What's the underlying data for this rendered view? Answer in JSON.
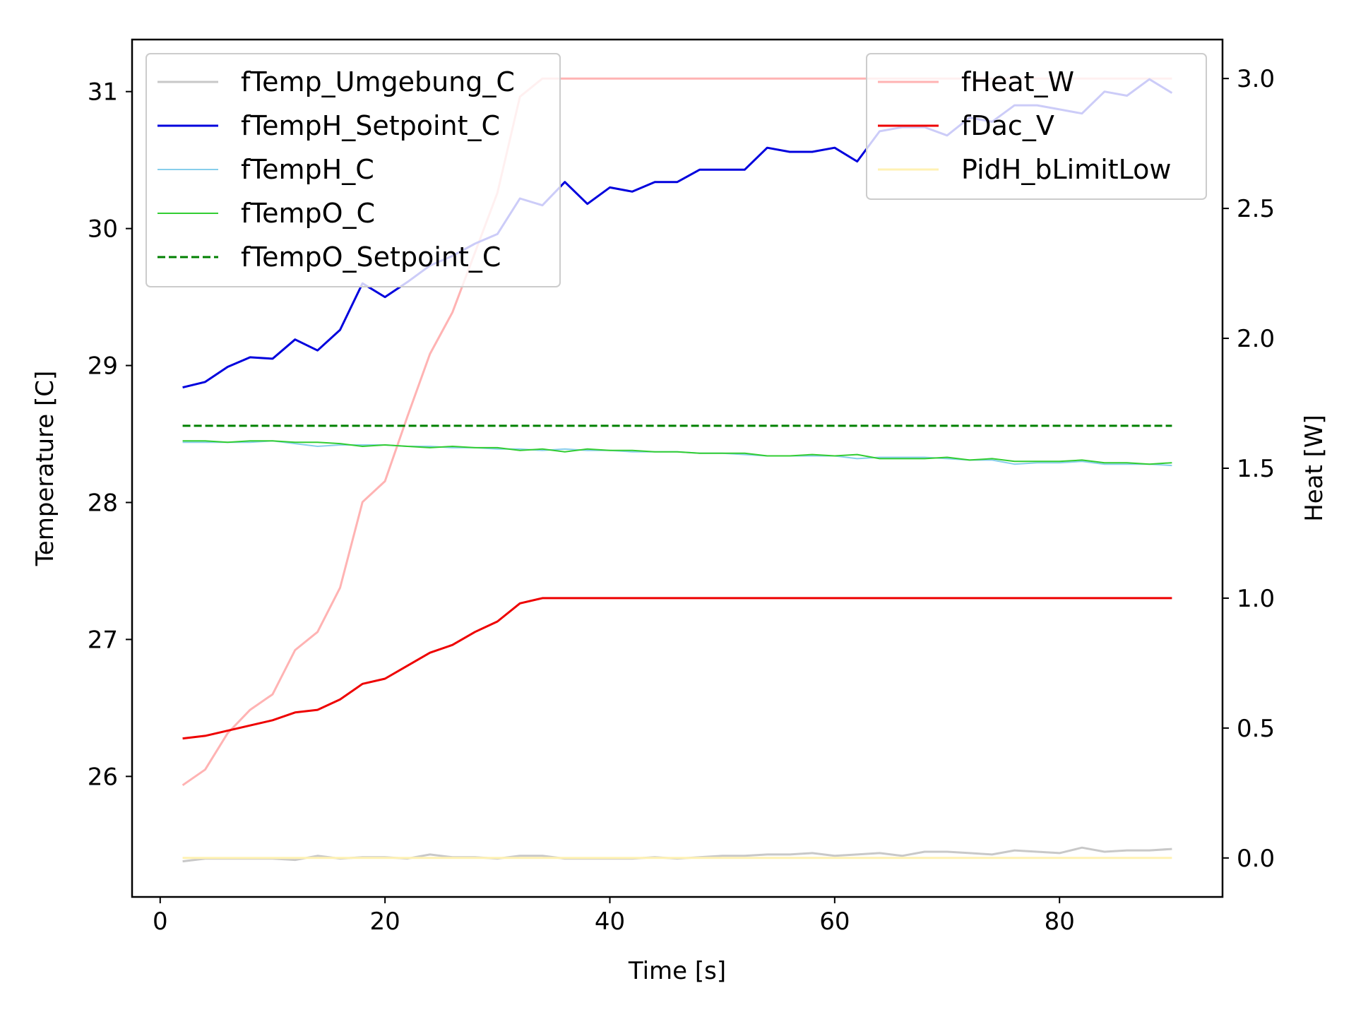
{
  "chart_data": {
    "type": "line",
    "title": "",
    "xlabel": "Time [s]",
    "ylabel_left": "Temperature [C]",
    "ylabel_right": "Heat [W]",
    "xlim": [
      -2.5,
      94.5
    ],
    "ylim_left": [
      25.12,
      31.38
    ],
    "ylim_right": [
      -0.15,
      3.15
    ],
    "x_ticks": [
      0,
      20,
      40,
      60,
      80
    ],
    "x_tick_labels": [
      "0",
      "20",
      "40",
      "60",
      "80"
    ],
    "y_left_ticks": [
      26,
      27,
      28,
      29,
      30,
      31
    ],
    "y_left_tick_labels": [
      "26",
      "27",
      "28",
      "29",
      "30",
      "31"
    ],
    "y_right_ticks": [
      0.0,
      0.5,
      1.0,
      1.5,
      2.0,
      2.5,
      3.0
    ],
    "y_right_tick_labels": [
      "0.0",
      "0.5",
      "1.0",
      "1.5",
      "2.0",
      "2.5",
      "3.0"
    ],
    "grid": false,
    "legend_left_placement": "upper-left",
    "legend_right_placement": "upper-right",
    "x": [
      2,
      4,
      6,
      8,
      10,
      12,
      14,
      16,
      18,
      20,
      22,
      24,
      26,
      28,
      30,
      32,
      34,
      36,
      38,
      40,
      42,
      44,
      46,
      48,
      50,
      52,
      54,
      56,
      58,
      60,
      62,
      64,
      66,
      68,
      70,
      72,
      74,
      76,
      78,
      80,
      82,
      84,
      86,
      88,
      90
    ],
    "series": [
      {
        "name": "fTemp_Umgebung_C",
        "axis": "left",
        "color": "#c8c8c8",
        "dash": "solid",
        "width": 3,
        "values": [
          25.38,
          25.4,
          25.4,
          25.4,
          25.4,
          25.39,
          25.42,
          25.4,
          25.41,
          25.41,
          25.4,
          25.43,
          25.41,
          25.41,
          25.4,
          25.42,
          25.42,
          25.4,
          25.4,
          25.4,
          25.4,
          25.41,
          25.4,
          25.41,
          25.42,
          25.42,
          25.43,
          25.43,
          25.44,
          25.42,
          25.43,
          25.44,
          25.42,
          25.45,
          25.45,
          25.44,
          25.43,
          25.46,
          25.45,
          25.44,
          25.48,
          25.45,
          25.46,
          25.46,
          25.47
        ]
      },
      {
        "name": "fTempH_Setpoint_C",
        "axis": "left",
        "color": "#0000dd",
        "dash": "solid",
        "width": 3,
        "values": [
          28.84,
          28.88,
          28.99,
          29.06,
          29.05,
          29.19,
          29.11,
          29.26,
          29.6,
          29.5,
          29.61,
          29.73,
          29.8,
          29.89,
          29.96,
          30.22,
          30.17,
          30.34,
          30.18,
          30.3,
          30.27,
          30.34,
          30.34,
          30.43,
          30.43,
          30.43,
          30.59,
          30.56,
          30.56,
          30.59,
          30.49,
          30.71,
          30.74,
          30.74,
          30.68,
          30.81,
          30.78,
          30.9,
          30.9,
          30.87,
          30.84,
          31.0,
          30.97,
          31.09,
          30.99
        ]
      },
      {
        "name": "fTempH_C",
        "axis": "left",
        "color": "#87ceeb",
        "dash": "solid",
        "width": 2,
        "values": [
          28.44,
          28.44,
          28.44,
          28.44,
          28.45,
          28.43,
          28.41,
          28.42,
          28.42,
          28.42,
          28.41,
          28.41,
          28.4,
          28.4,
          28.39,
          28.39,
          28.38,
          28.39,
          28.38,
          28.38,
          28.37,
          28.37,
          28.37,
          28.36,
          28.36,
          28.35,
          28.34,
          28.34,
          28.34,
          28.34,
          28.32,
          28.33,
          28.33,
          28.33,
          28.32,
          28.31,
          28.31,
          28.28,
          28.29,
          28.29,
          28.3,
          28.28,
          28.28,
          28.28,
          28.27
        ]
      },
      {
        "name": "fTempO_C",
        "axis": "left",
        "color": "#32cd32",
        "dash": "solid",
        "width": 2,
        "values": [
          28.45,
          28.45,
          28.44,
          28.45,
          28.45,
          28.44,
          28.44,
          28.43,
          28.41,
          28.42,
          28.41,
          28.4,
          28.41,
          28.4,
          28.4,
          28.38,
          28.39,
          28.37,
          28.39,
          28.38,
          28.38,
          28.37,
          28.37,
          28.36,
          28.36,
          28.36,
          28.34,
          28.34,
          28.35,
          28.34,
          28.35,
          28.32,
          28.32,
          28.32,
          28.33,
          28.31,
          28.32,
          28.3,
          28.3,
          28.3,
          28.31,
          28.29,
          28.29,
          28.28,
          28.29
        ]
      },
      {
        "name": "fTempO_Setpoint_C",
        "axis": "left",
        "color": "#008000",
        "dash": "dashed",
        "width": 3,
        "values": [
          28.56,
          28.56,
          28.56,
          28.56,
          28.56,
          28.56,
          28.56,
          28.56,
          28.56,
          28.56,
          28.56,
          28.56,
          28.56,
          28.56,
          28.56,
          28.56,
          28.56,
          28.56,
          28.56,
          28.56,
          28.56,
          28.56,
          28.56,
          28.56,
          28.56,
          28.56,
          28.56,
          28.56,
          28.56,
          28.56,
          28.56,
          28.56,
          28.56,
          28.56,
          28.56,
          28.56,
          28.56,
          28.56,
          28.56,
          28.56,
          28.56,
          28.56,
          28.56,
          28.56,
          28.56
        ]
      },
      {
        "name": "fHeat_W",
        "axis": "right",
        "color": "#ffb3b3",
        "dash": "solid",
        "width": 3,
        "values": [
          0.28,
          0.34,
          0.48,
          0.57,
          0.63,
          0.8,
          0.87,
          1.04,
          1.37,
          1.45,
          1.7,
          1.94,
          2.1,
          2.33,
          2.56,
          2.93,
          3.0,
          3.0,
          3.0,
          3.0,
          3.0,
          3.0,
          3.0,
          3.0,
          3.0,
          3.0,
          3.0,
          3.0,
          3.0,
          3.0,
          3.0,
          3.0,
          3.0,
          3.0,
          3.0,
          3.0,
          3.0,
          3.0,
          3.0,
          3.0,
          3.0,
          3.0,
          3.0,
          3.0,
          3.0
        ]
      },
      {
        "name": "fDac_V",
        "axis": "right",
        "color": "#ee0000",
        "dash": "solid",
        "width": 3,
        "values": [
          0.46,
          0.47,
          0.49,
          0.51,
          0.53,
          0.56,
          0.57,
          0.61,
          0.67,
          0.69,
          0.74,
          0.79,
          0.82,
          0.87,
          0.91,
          0.98,
          1.0,
          1.0,
          1.0,
          1.0,
          1.0,
          1.0,
          1.0,
          1.0,
          1.0,
          1.0,
          1.0,
          1.0,
          1.0,
          1.0,
          1.0,
          1.0,
          1.0,
          1.0,
          1.0,
          1.0,
          1.0,
          1.0,
          1.0,
          1.0,
          1.0,
          1.0,
          1.0,
          1.0,
          1.0
        ]
      },
      {
        "name": "PidH_bLimitLow",
        "axis": "right",
        "color": "#fff2b3",
        "dash": "solid",
        "width": 3,
        "values": [
          0.0,
          0.0,
          0.0,
          0.0,
          0.0,
          0.0,
          0.0,
          0.0,
          0.0,
          0.0,
          0.0,
          0.0,
          0.0,
          0.0,
          0.0,
          0.0,
          0.0,
          0.0,
          0.0,
          0.0,
          0.0,
          0.0,
          0.0,
          0.0,
          0.0,
          0.0,
          0.0,
          0.0,
          0.0,
          0.0,
          0.0,
          0.0,
          0.0,
          0.0,
          0.0,
          0.0,
          0.0,
          0.0,
          0.0,
          0.0,
          0.0,
          0.0,
          0.0,
          0.0,
          0.0
        ]
      }
    ]
  }
}
